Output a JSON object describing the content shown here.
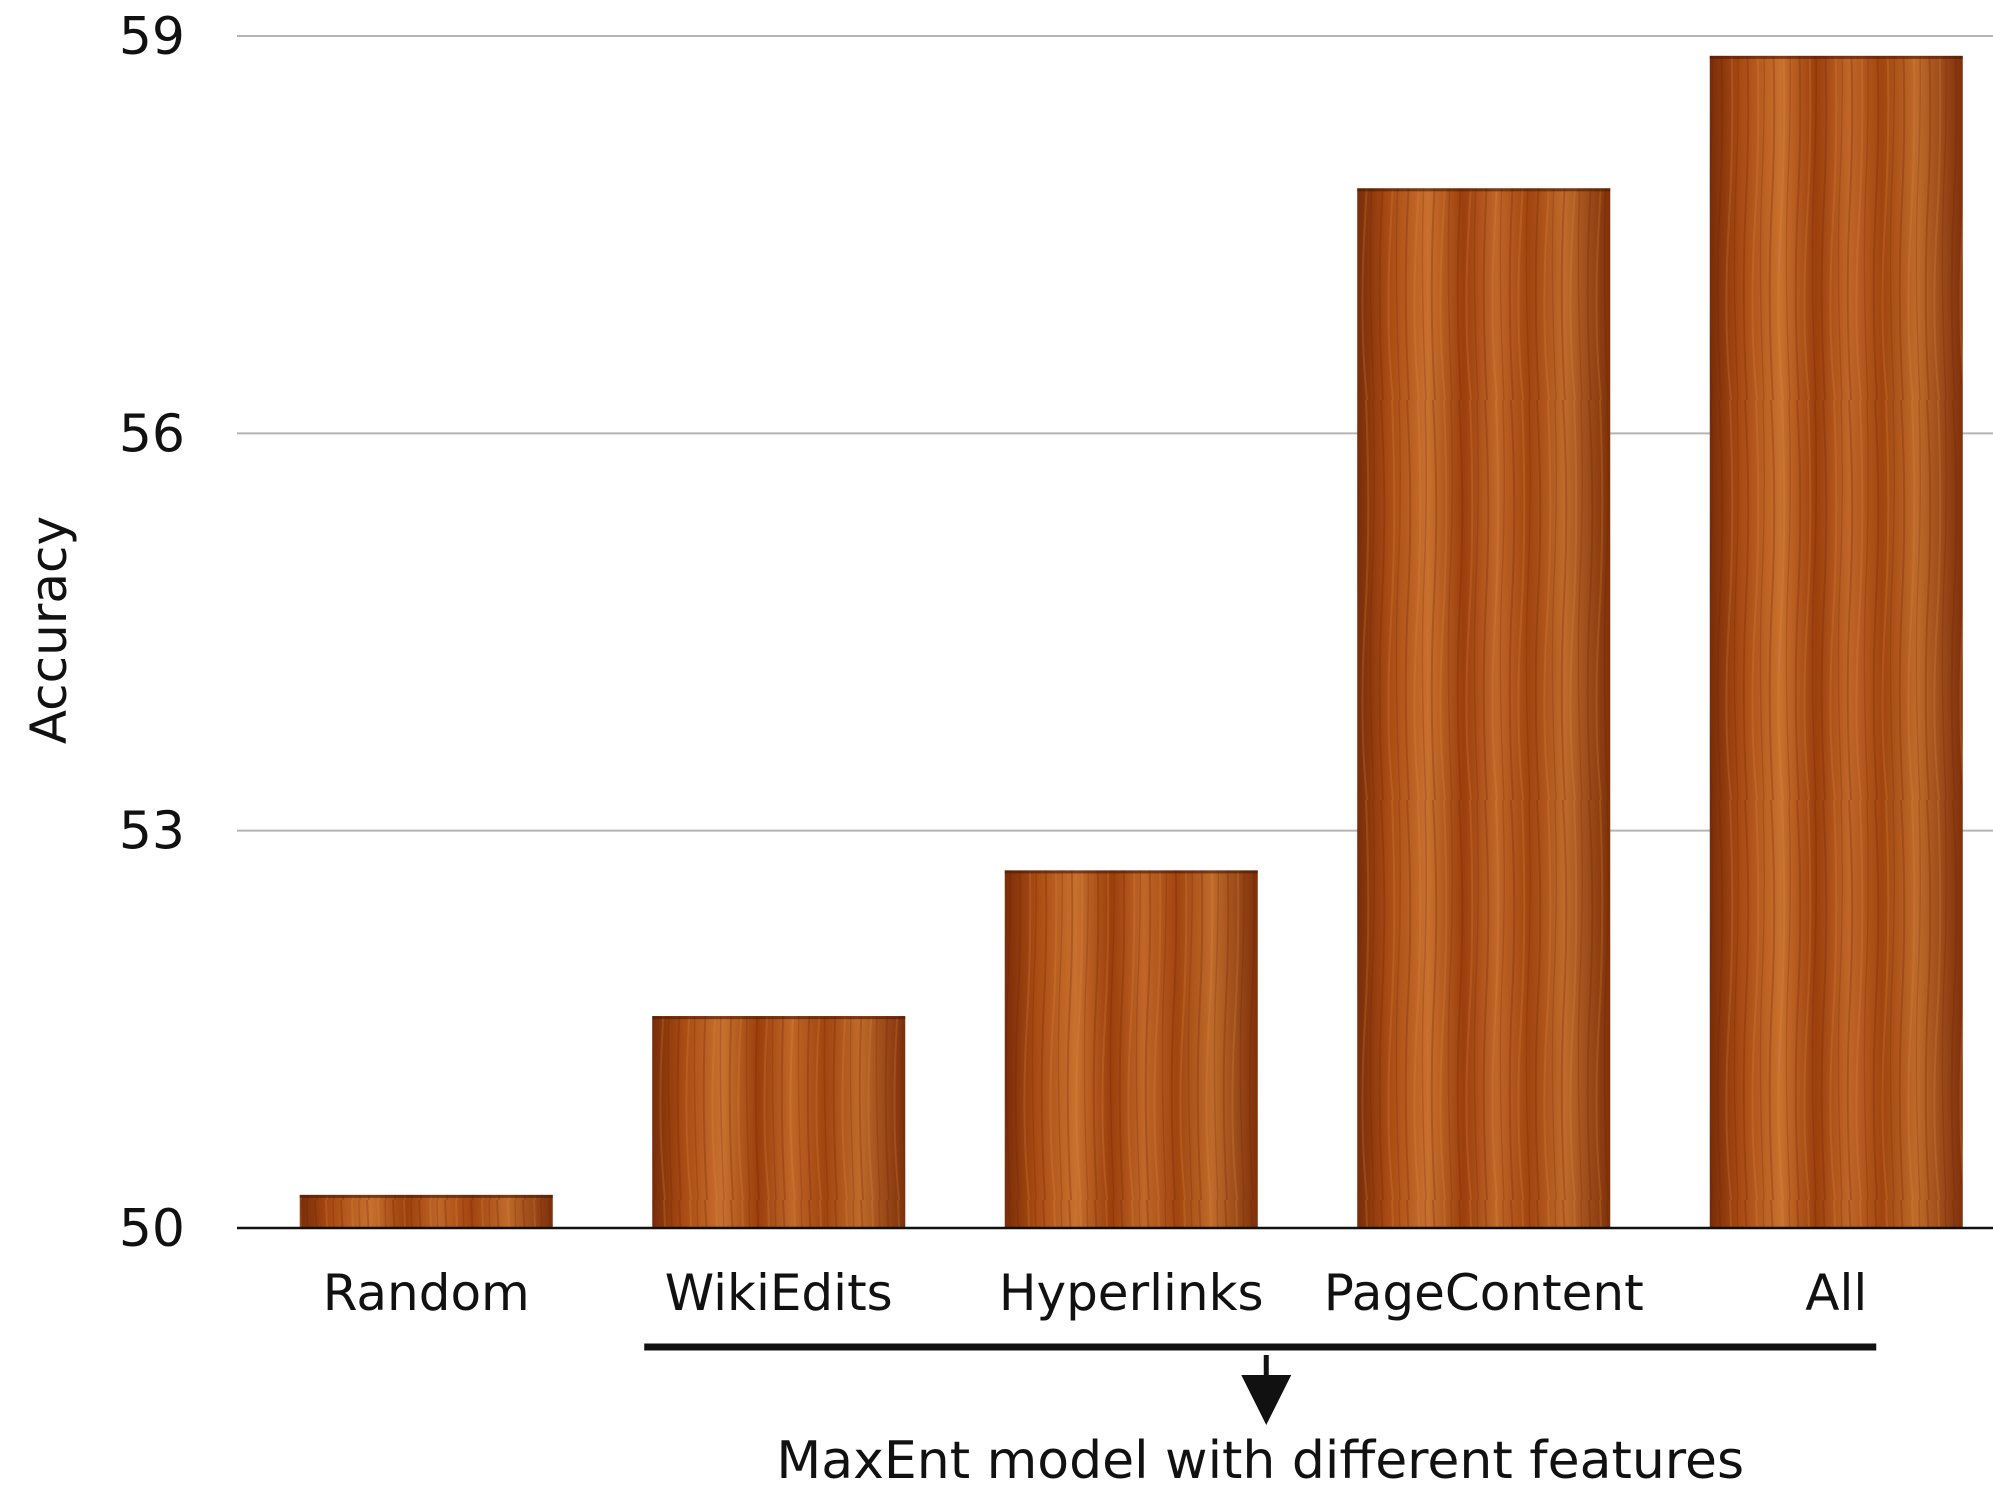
{
  "chart_data": {
    "type": "bar",
    "categories": [
      "Random",
      "WikiEdits",
      "Hyperlinks",
      "PageContent",
      "All"
    ],
    "values": [
      50.25,
      51.6,
      52.7,
      57.85,
      58.85
    ],
    "title": "",
    "xlabel": "",
    "ylabel": "Accuracy",
    "ylim": [
      50,
      59
    ],
    "yticks": [
      50,
      53,
      56,
      59
    ],
    "grid": true,
    "bar_color": "#a8480f",
    "annotation": {
      "text": "MaxEnt model with different features",
      "bracket_categories": [
        "WikiEdits",
        "Hyperlinks",
        "PageContent",
        "All"
      ]
    }
  }
}
